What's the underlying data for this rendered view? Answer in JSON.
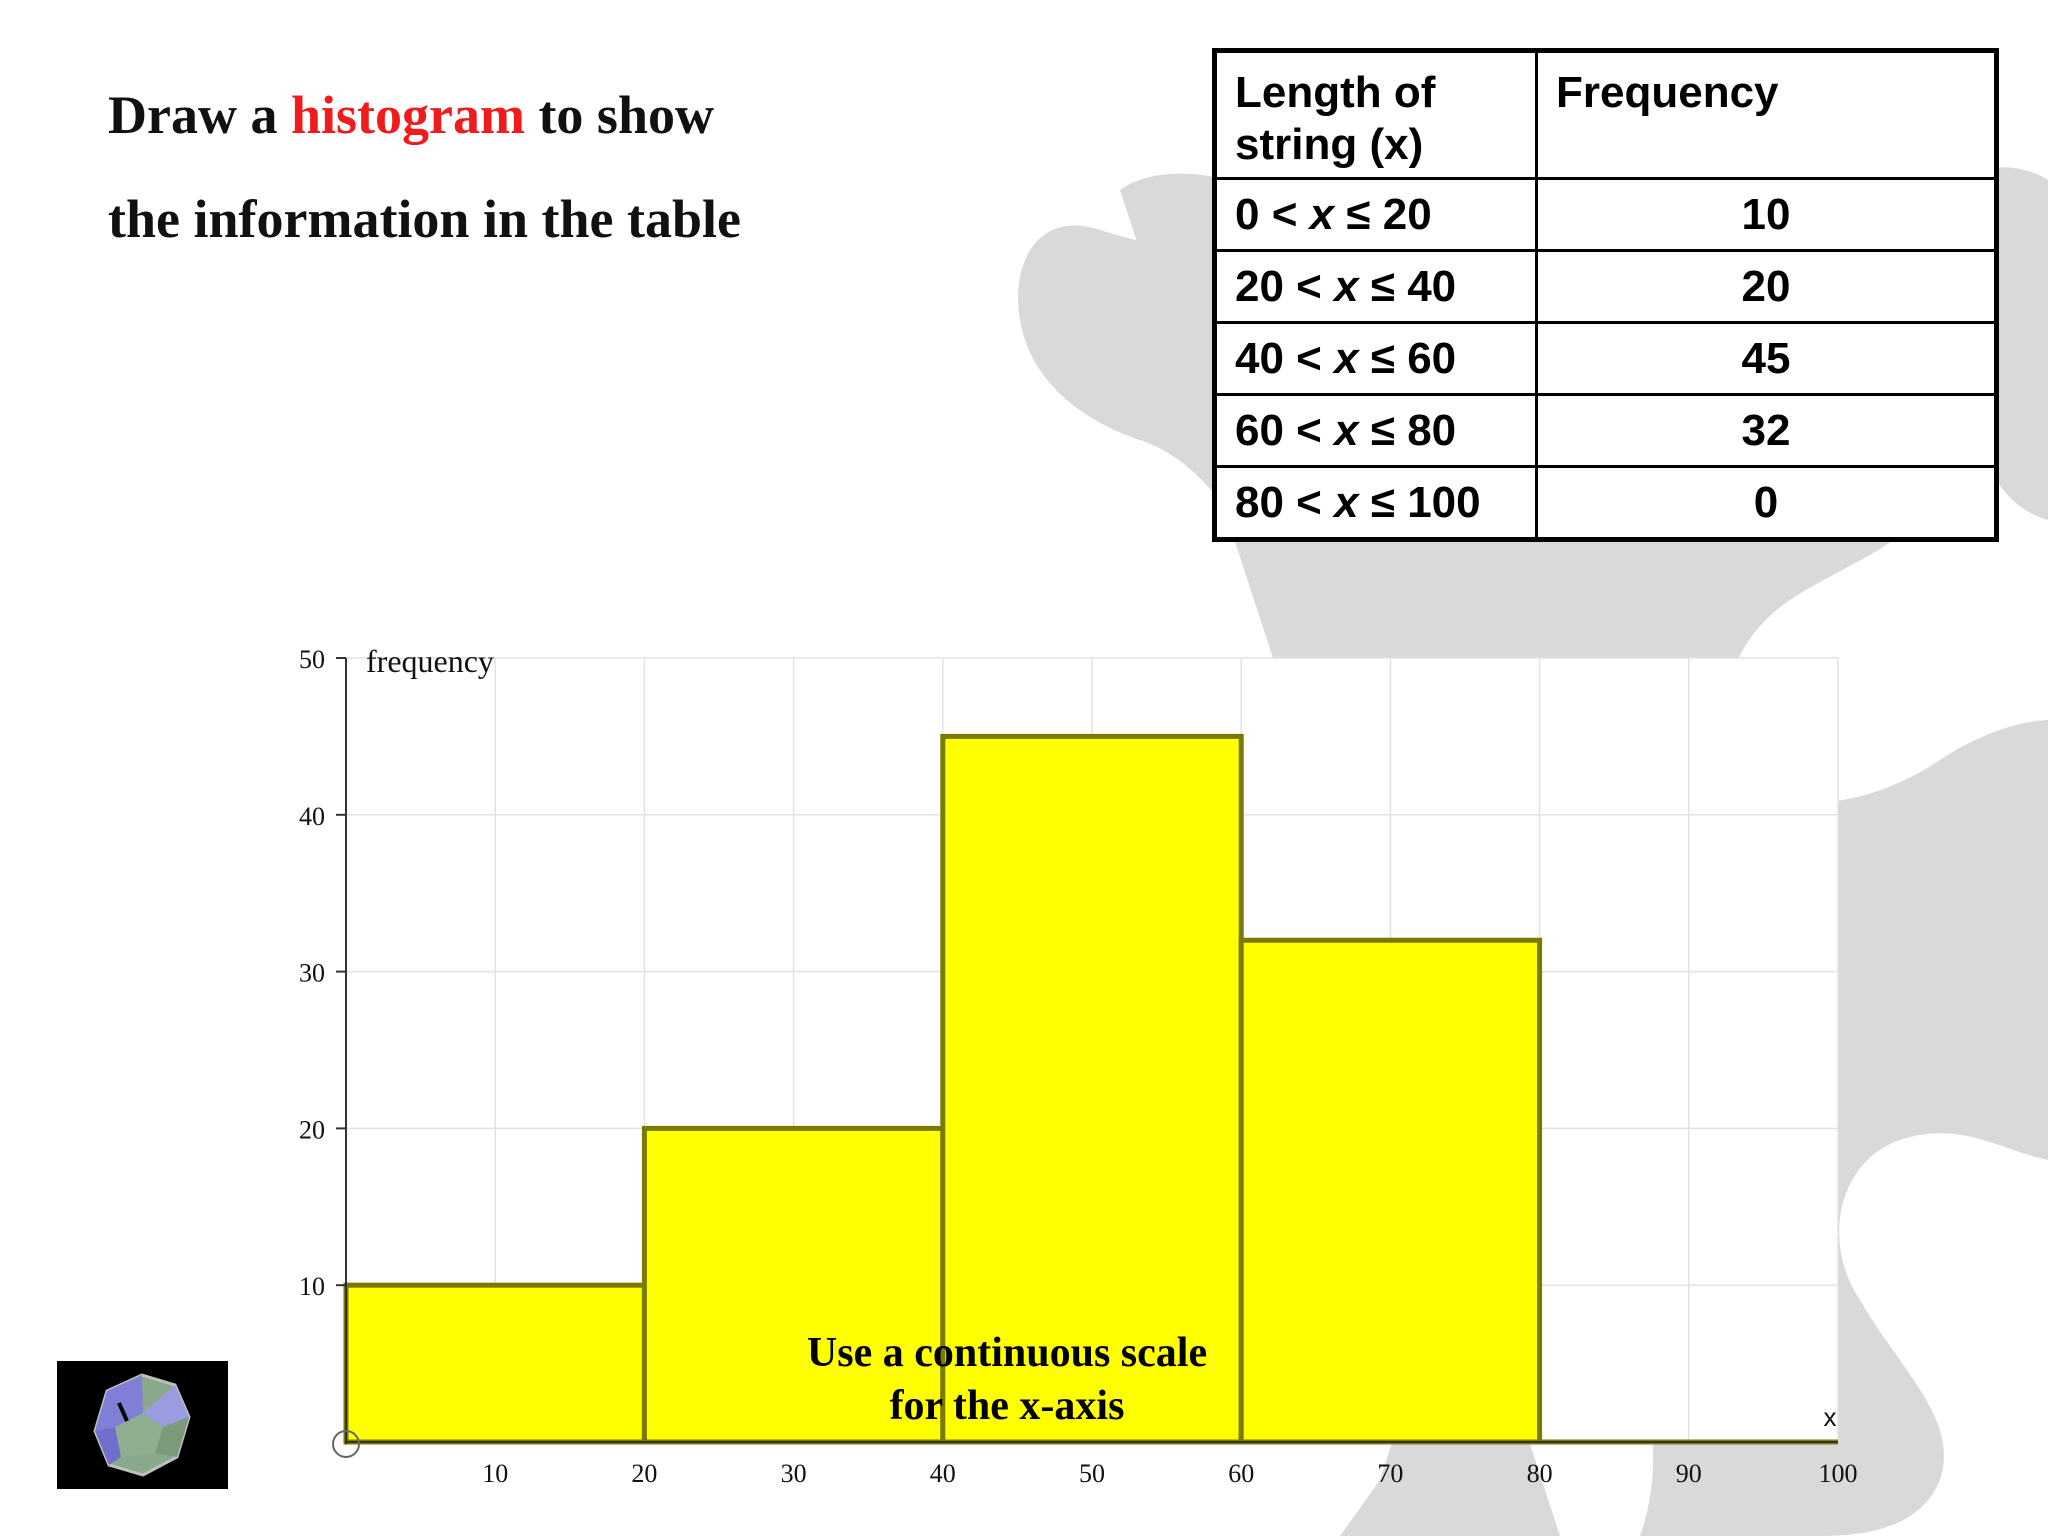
{
  "instruction": {
    "line1_pre": "Draw a ",
    "line1_highlight": "histogram",
    "line1_post": " to show",
    "line2": "the information in the table"
  },
  "table": {
    "headers": [
      "Length of string (x)",
      "Frequency"
    ],
    "rows": [
      {
        "lo": "0",
        "hi": "20",
        "freq": "10"
      },
      {
        "lo": "20",
        "hi": "40",
        "freq": "20"
      },
      {
        "lo": "40",
        "hi": "60",
        "freq": "45"
      },
      {
        "lo": "60",
        "hi": "80",
        "freq": "32"
      },
      {
        "lo": "80",
        "hi": "100",
        "freq": "0"
      }
    ]
  },
  "chart_data": {
    "type": "bar",
    "ylabel": "frequency",
    "xlabel": "x",
    "xlim": [
      0,
      100
    ],
    "ylim": [
      0,
      50
    ],
    "xticks": [
      10,
      20,
      30,
      40,
      50,
      60,
      70,
      80,
      90,
      100
    ],
    "yticks": [
      10,
      20,
      30,
      40,
      50
    ],
    "bins": [
      {
        "from": 0,
        "to": 20,
        "value": 10
      },
      {
        "from": 20,
        "to": 40,
        "value": 20
      },
      {
        "from": 40,
        "to": 60,
        "value": 45
      },
      {
        "from": 60,
        "to": 80,
        "value": 32
      },
      {
        "from": 80,
        "to": 100,
        "value": 0
      }
    ],
    "grid": true,
    "annotation": [
      "Use a continuous scale",
      "for the x-axis"
    ]
  },
  "colors": {
    "bar_fill": "#ffff00",
    "bar_stroke": "#7a7a00",
    "highlight": "#ee1c1c",
    "decor": "#d9d9d9"
  },
  "icons": {
    "logo": "polyhedron-logo-icon"
  }
}
